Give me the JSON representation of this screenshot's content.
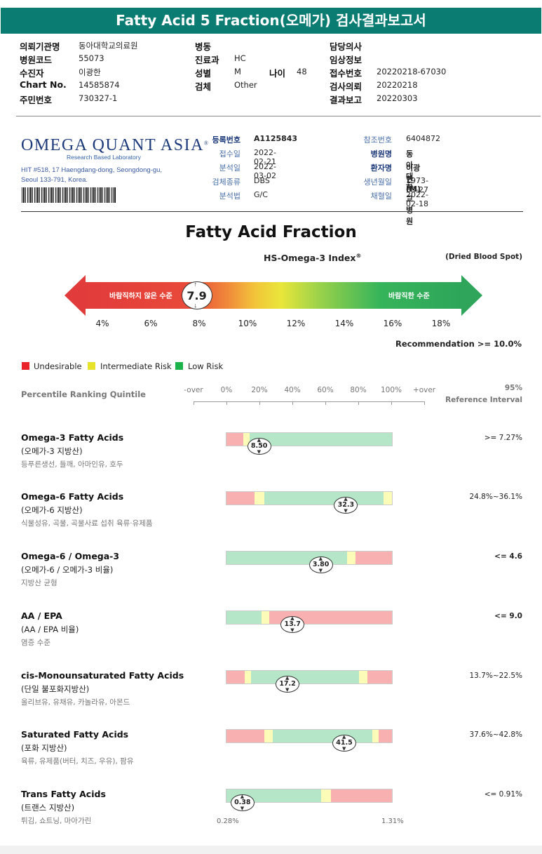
{
  "title": "Fatty Acid 5 Fraction(오메가) 검사결과보고서",
  "header": {
    "col1": [
      {
        "label": "의뢰기관명",
        "value": "동아대학교의료원"
      },
      {
        "label": "병원코드",
        "value": "55073"
      },
      {
        "label": "수진자",
        "value": "이광한"
      },
      {
        "label": "Chart No.",
        "value": "14585874"
      },
      {
        "label": "주민번호",
        "value": "730327-1"
      }
    ],
    "col2": [
      {
        "label": "병동",
        "value": ""
      },
      {
        "label": "진료과",
        "value": "HC"
      },
      {
        "label": "성별",
        "value": "M"
      },
      {
        "label": "검체",
        "value": "Other"
      }
    ],
    "age": {
      "label": "나이",
      "value": "48"
    },
    "col3": [
      {
        "label": "담당의사",
        "value": ""
      },
      {
        "label": "임상정보",
        "value": ""
      },
      {
        "label": "접수번호",
        "value": "20220218-67030"
      },
      {
        "label": "검사의뢰",
        "value": "20220218"
      },
      {
        "label": "결과보고",
        "value": "20220303"
      }
    ]
  },
  "lab": {
    "logo": "OMEGA QUANT ASIA",
    "logo_reg": "®",
    "tagline": "Research Based Laboratory",
    "address1": "HIT #518, 17 Haengdang-dong, Seongdong-gu,",
    "address2": "Seoul 133-791, Korea."
  },
  "info_left": [
    {
      "label": "등록번호",
      "value": "A1125843"
    },
    {
      "label": "접수일",
      "value": "2022-02-21"
    },
    {
      "label": "분석일",
      "value": "2022-03-02"
    },
    {
      "label": "검체종류",
      "value": "DBS"
    },
    {
      "label": "분석법",
      "value": "G/C"
    }
  ],
  "info_right": [
    {
      "label": "참조번호",
      "value": "6404872"
    },
    {
      "label": "병원명",
      "value": "동아대학교병원"
    },
    {
      "label": "환자명",
      "value": "이광한 (M)"
    },
    {
      "label": "생년월일",
      "value": "1973-03-27"
    },
    {
      "label": "채혈일",
      "value": "2022-02-18"
    }
  ],
  "main_title": "Fatty Acid Fraction",
  "hs_title": "HS-Omega-3 Index",
  "hs_reg": "®",
  "dbs_note": "(Dried Blood Spot)",
  "gauge": {
    "left_label": "바람직하지 않은 수준",
    "right_label": "바람직한 수준",
    "score": "7.9",
    "score_value": 7.9,
    "ticks": [
      "4%",
      "6%",
      "8%",
      "10%",
      "12%",
      "14%",
      "16%",
      "18%"
    ],
    "tick_values": [
      4,
      6,
      8,
      10,
      12,
      14,
      16,
      18
    ]
  },
  "recommendation": "Recommendation  >= 10.0%",
  "legend": [
    {
      "label": "Undesirable",
      "color": "#e8232a"
    },
    {
      "label": "Intermediate Risk",
      "color": "#e7e22a"
    },
    {
      "label": "Low Risk",
      "color": "#1bb24a"
    }
  ],
  "percentile": {
    "label": "Percentile Ranking Quintile",
    "ticks": [
      "-over",
      "0%",
      "20%",
      "40%",
      "60%",
      "80%",
      "100%",
      "+over"
    ],
    "ref_line1": "95%",
    "ref_line2": "Reference Interval"
  },
  "colors": {
    "red": "#f8b0b0",
    "yellow": "#fdfbb8",
    "green": "#b5e6c7"
  },
  "rows": [
    {
      "name": "Omega-3 Fatty Acids",
      "sub": "(오메가-3 지방산)",
      "note": "등푸른생선, 들깨, 아마인유, 호두",
      "ref": ">= 7.27%",
      "ref_bold": false,
      "value": "8.50",
      "pos": 0.2,
      "segs": [
        [
          "red",
          0.1
        ],
        [
          "yellow",
          0.04
        ],
        [
          "green",
          0.86
        ]
      ]
    },
    {
      "name": "Omega-6 Fatty Acids",
      "sub": "(오메가-6 지방산)",
      "note": "식물성유, 곡물, 곡물사료 섭취 육류·유제품",
      "ref": "24.8%~36.1%",
      "ref_bold": false,
      "value": "32.3",
      "pos": 0.72,
      "segs": [
        [
          "red",
          0.17
        ],
        [
          "yellow",
          0.06
        ],
        [
          "green",
          0.72
        ],
        [
          "yellow",
          0.05
        ]
      ]
    },
    {
      "name": "Omega-6 / Omega-3",
      "sub": "(오메가-6 / 오메가-3 비율)",
      "note": "지방산 균형",
      "ref": "<= 4.6",
      "ref_bold": true,
      "value": "3.80",
      "pos": 0.57,
      "segs": [
        [
          "green",
          0.73
        ],
        [
          "yellow",
          0.05
        ],
        [
          "red",
          0.22
        ]
      ]
    },
    {
      "name": "AA / EPA",
      "sub": "(AA / EPA 비율)",
      "note": "염증 수준",
      "ref": "<= 9.0",
      "ref_bold": true,
      "value": "13.7",
      "pos": 0.4,
      "segs": [
        [
          "green",
          0.21
        ],
        [
          "yellow",
          0.05
        ],
        [
          "red",
          0.74
        ]
      ]
    },
    {
      "name": "cis-Monounsaturated Fatty Acids",
      "sub": "(단일 불포화지방산)",
      "note": "올리브유, 유채유, 카놀라유, 아몬드",
      "ref": "13.7%~22.5%",
      "ref_bold": false,
      "value": "17.2",
      "pos": 0.37,
      "segs": [
        [
          "red",
          0.11
        ],
        [
          "yellow",
          0.04
        ],
        [
          "green",
          0.65
        ],
        [
          "yellow",
          0.05
        ],
        [
          "red",
          0.15
        ]
      ]
    },
    {
      "name": "Saturated Fatty Acids",
      "sub": "(포화 지방산)",
      "note": "육류, 유제품(버터, 치즈, 우유), 팜유",
      "ref": "37.6%~42.8%",
      "ref_bold": false,
      "value": "41.5",
      "pos": 0.71,
      "segs": [
        [
          "red",
          0.23
        ],
        [
          "yellow",
          0.05
        ],
        [
          "green",
          0.6
        ],
        [
          "yellow",
          0.04
        ],
        [
          "red",
          0.08
        ]
      ]
    },
    {
      "name": "Trans Fatty Acids",
      "sub": "(트랜스 지방산)",
      "note": "튀김, 쇼트닝, 마아가린",
      "ref": "<= 0.91%",
      "ref_bold": false,
      "value": "0.38",
      "pos": 0.1,
      "segs": [
        [
          "green",
          0.57
        ],
        [
          "yellow",
          0.06
        ],
        [
          "red",
          0.37
        ]
      ]
    }
  ],
  "footer": {
    "min": "0.28%",
    "max": "1.31%"
  }
}
